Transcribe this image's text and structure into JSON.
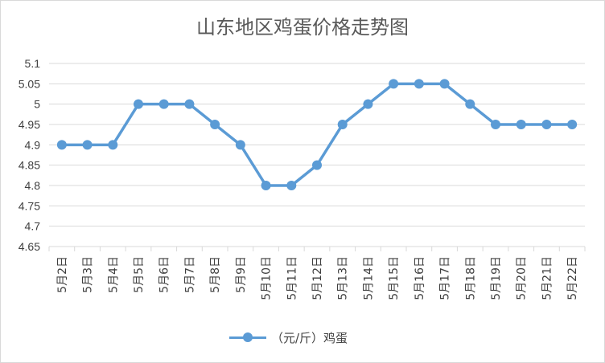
{
  "chart_data": {
    "type": "line",
    "title": "山东地区鸡蛋价格走势图",
    "categories": [
      "5月2日",
      "5月3日",
      "5月4日",
      "5月5日",
      "5月6日",
      "5月7日",
      "5月8日",
      "5月9日",
      "5月10日",
      "5月11日",
      "5月12日",
      "5月13日",
      "5月14日",
      "5月15日",
      "5月16日",
      "5月17日",
      "5月18日",
      "5月19日",
      "5月20日",
      "5月21日",
      "5月22日"
    ],
    "series": [
      {
        "name": "（元/斤）鸡蛋",
        "color": "#5b9bd5",
        "values": [
          4.9,
          4.9,
          4.9,
          5.0,
          5.0,
          5.0,
          4.95,
          4.9,
          4.8,
          4.8,
          4.85,
          4.95,
          5.0,
          5.05,
          5.05,
          5.05,
          5.0,
          4.95,
          4.95,
          4.95,
          4.95
        ]
      }
    ],
    "ylim": [
      4.65,
      5.1
    ],
    "yticks": [
      "5.1",
      "5.05",
      "5",
      "4.95",
      "4.9",
      "4.85",
      "4.8",
      "4.75",
      "4.7",
      "4.65"
    ],
    "grid": true,
    "legend": "bottom"
  }
}
